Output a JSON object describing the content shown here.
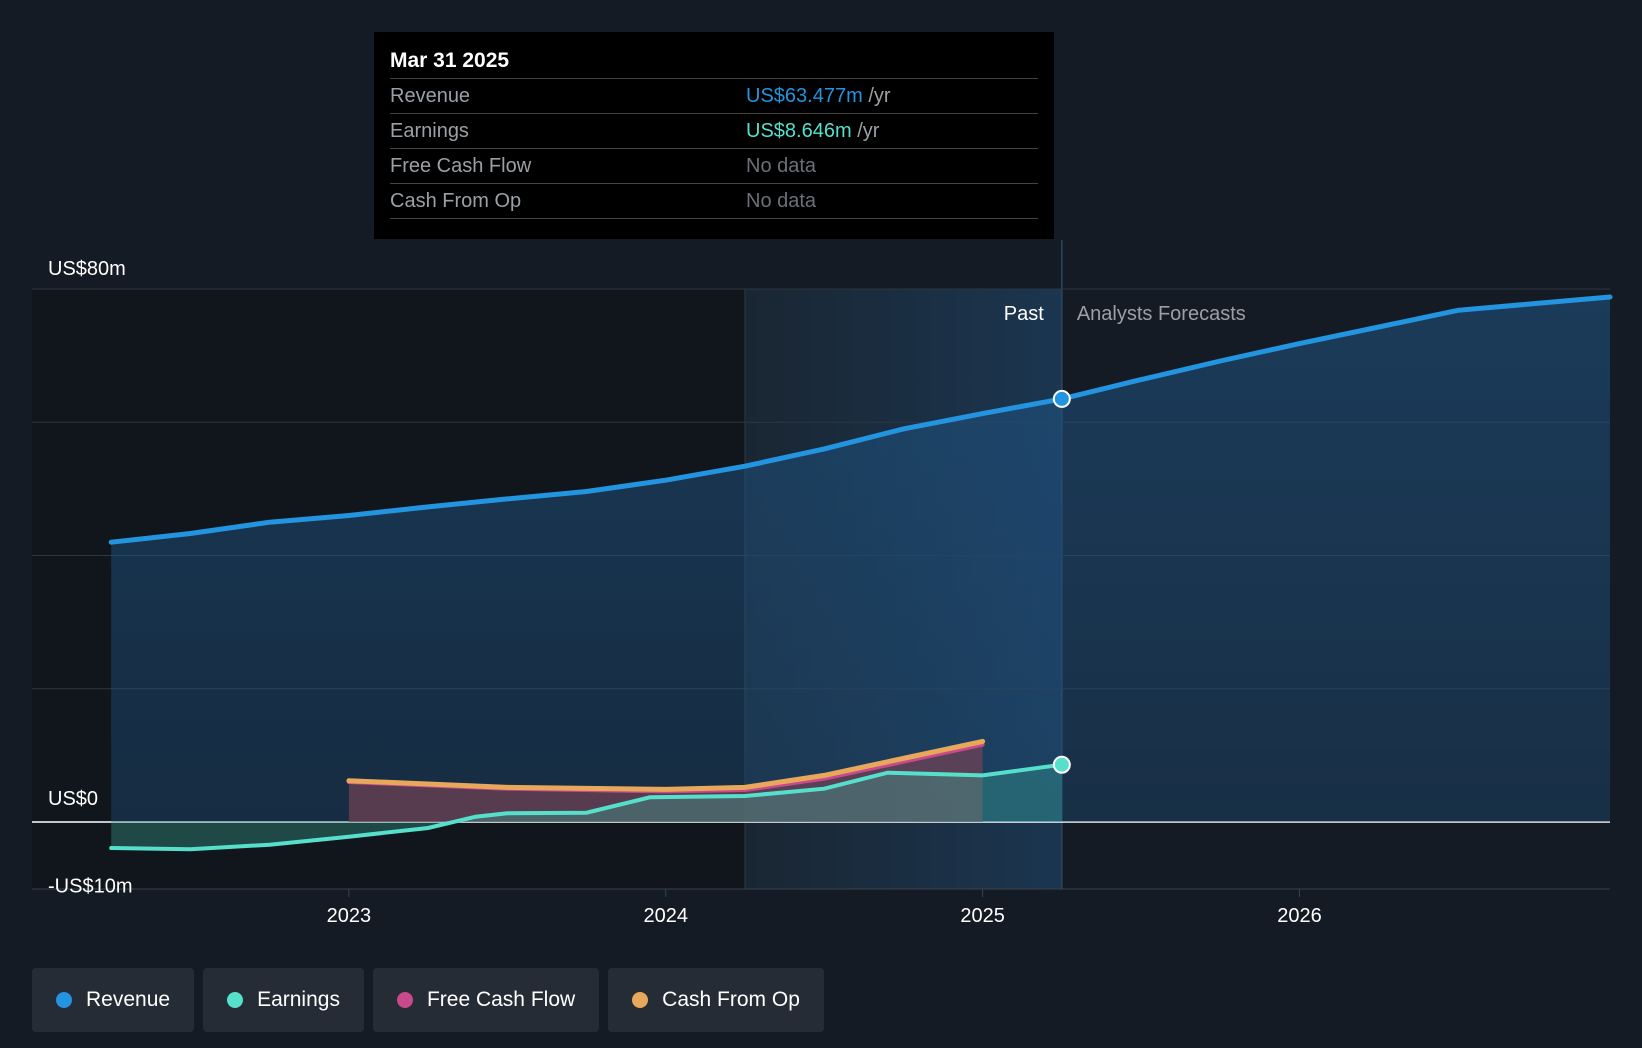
{
  "tooltip": {
    "date": "Mar 31 2025",
    "rows": [
      {
        "label": "Revenue",
        "value": "US$63.477m",
        "unit": "/yr"
      },
      {
        "label": "Earnings",
        "value": "US$8.646m",
        "unit": "/yr"
      },
      {
        "label": "Free Cash Flow",
        "value": "No data"
      },
      {
        "label": "Cash From Op",
        "value": "No data"
      }
    ]
  },
  "legend": [
    {
      "label": "Revenue",
      "color": "#2394df"
    },
    {
      "label": "Earnings",
      "color": "#56e0cc"
    },
    {
      "label": "Free Cash Flow",
      "color": "#c94a8a"
    },
    {
      "label": "Cash From Op",
      "color": "#e8a85c"
    }
  ],
  "chart_data": {
    "type": "line",
    "title": "",
    "y_labels": [
      "US$80m",
      "US$0",
      "-US$10m"
    ],
    "ylim": [
      -10,
      80
    ],
    "xlim": [
      2022.0,
      2026.98
    ],
    "x_ticks": [
      {
        "label": "2023",
        "value": 2023
      },
      {
        "label": "2024",
        "value": 2024
      },
      {
        "label": "2025",
        "value": 2025
      },
      {
        "label": "2026",
        "value": 2026
      }
    ],
    "past_label": "Past",
    "forecast_label": "Analysts Forecasts",
    "past_end": 2025.25,
    "highlight_start": 2024.25,
    "series": [
      {
        "name": "Revenue",
        "color": "#2394df",
        "x": [
          2022.25,
          2022.5,
          2022.75,
          2023.0,
          2023.25,
          2023.5,
          2023.75,
          2024.0,
          2024.25,
          2024.5,
          2024.75,
          2025.0,
          2025.25,
          2025.5,
          2025.75,
          2026.0,
          2026.25,
          2026.5,
          2026.98
        ],
        "values": [
          42.0,
          43.3,
          45.0,
          46.0,
          47.3,
          48.5,
          49.6,
          51.3,
          53.4,
          56.0,
          59.0,
          61.3,
          63.5,
          66.4,
          69.2,
          71.8,
          74.3,
          76.8,
          78.8
        ]
      },
      {
        "name": "Earnings",
        "color": "#56e0cc",
        "x": [
          2022.25,
          2022.5,
          2022.75,
          2023.0,
          2023.25,
          2023.4,
          2023.5,
          2023.75,
          2023.95,
          2024.25,
          2024.5,
          2024.7,
          2025.0,
          2025.25
        ],
        "values": [
          -3.9,
          -4.1,
          -3.4,
          -2.2,
          -0.9,
          0.8,
          1.3,
          1.4,
          3.7,
          3.9,
          5.0,
          7.4,
          7.0,
          8.6
        ]
      },
      {
        "name": "Free Cash Flow",
        "color": "#c94a8a",
        "x": [
          2023.0,
          2023.5,
          2024.0,
          2024.25,
          2024.5,
          2025.0
        ],
        "values": [
          6.0,
          5.0,
          4.6,
          4.8,
          6.5,
          11.6
        ]
      },
      {
        "name": "Cash From Op",
        "color": "#e8a85c",
        "x": [
          2023.0,
          2023.5,
          2024.0,
          2024.25,
          2024.5,
          2025.0
        ],
        "values": [
          6.2,
          5.2,
          4.9,
          5.2,
          7.0,
          12.1
        ]
      }
    ]
  }
}
